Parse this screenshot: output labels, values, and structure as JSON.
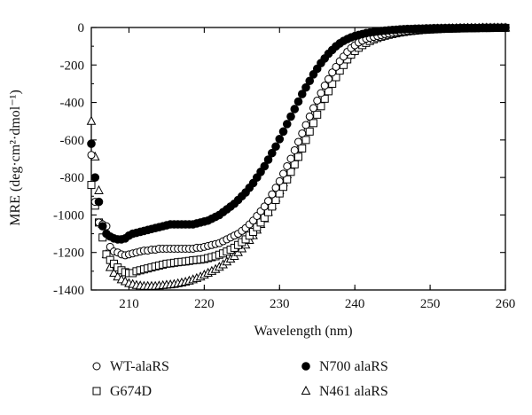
{
  "chart_data": {
    "type": "scatter",
    "title": "",
    "xlabel": "Wavelength (nm)",
    "ylabel": "MRE (deg·cm²·dmol⁻¹)",
    "xlim": [
      205,
      260
    ],
    "ylim": [
      -1400,
      0
    ],
    "xticks": [
      210,
      220,
      230,
      240,
      250,
      260
    ],
    "yticks": [
      0,
      -200,
      -400,
      -600,
      -800,
      -1000,
      -1200,
      -1400
    ],
    "grid": false,
    "legend_position": "bottom",
    "series": [
      {
        "name": "WT-alaRS",
        "marker": "open-circle",
        "x": [
          205,
          205.5,
          206,
          206.5,
          207,
          207.5,
          208,
          208.5,
          209,
          209.5,
          210,
          210.5,
          211,
          211.5,
          212,
          212.5,
          213,
          213.5,
          214,
          214.5,
          215,
          215.5,
          216,
          216.5,
          217,
          217.5,
          218,
          218.5,
          219,
          219.5,
          220,
          220.5,
          221,
          221.5,
          222,
          222.5,
          223,
          223.5,
          224,
          224.5,
          225,
          225.5,
          226,
          226.5,
          227,
          227.5,
          228,
          228.5,
          229,
          229.5,
          230,
          230.5,
          231,
          231.5,
          232,
          232.5,
          233,
          233.5,
          234,
          234.5,
          235,
          235.5,
          236,
          236.5,
          237,
          237.5,
          238,
          238.5,
          239,
          239.5,
          240,
          240.5,
          241,
          241.5,
          242,
          242.5,
          243,
          243.5,
          244,
          244.5,
          245,
          245.5,
          246,
          246.5,
          247,
          247.5,
          248,
          248.5,
          249,
          249.5,
          250,
          250.5,
          251,
          251.5,
          252,
          252.5,
          253,
          253.5,
          254,
          254.5,
          255,
          255.5,
          256,
          256.5,
          257,
          257.5,
          258,
          258.5,
          259,
          259.5,
          260
        ],
        "values": [
          -680,
          -930,
          -1040,
          -1050,
          -1060,
          -1170,
          -1195,
          -1200,
          -1210,
          -1215,
          -1210,
          -1205,
          -1200,
          -1195,
          -1190,
          -1190,
          -1185,
          -1185,
          -1180,
          -1180,
          -1180,
          -1180,
          -1180,
          -1180,
          -1180,
          -1180,
          -1180,
          -1180,
          -1175,
          -1175,
          -1170,
          -1165,
          -1160,
          -1155,
          -1150,
          -1140,
          -1130,
          -1120,
          -1110,
          -1100,
          -1085,
          -1070,
          -1050,
          -1030,
          -1005,
          -980,
          -955,
          -925,
          -890,
          -855,
          -820,
          -780,
          -740,
          -700,
          -655,
          -610,
          -565,
          -520,
          -475,
          -430,
          -390,
          -350,
          -310,
          -275,
          -240,
          -210,
          -180,
          -155,
          -130,
          -110,
          -95,
          -80,
          -70,
          -60,
          -55,
          -50,
          -45,
          -40,
          -35,
          -32,
          -28,
          -25,
          -22,
          -20,
          -18,
          -16,
          -14,
          -12,
          -11,
          -10,
          -9,
          -8,
          -8,
          -7,
          -6,
          -6,
          -5,
          -5,
          -5,
          -4,
          -4,
          -4,
          -3,
          -3,
          -3,
          -3,
          -2,
          -2,
          -2,
          -2,
          -2
        ]
      },
      {
        "name": "N700 alaRS",
        "marker": "filled-circle",
        "x": [
          205,
          205.5,
          206,
          206.5,
          207,
          207.5,
          208,
          208.5,
          209,
          209.5,
          210,
          210.5,
          211,
          211.5,
          212,
          212.5,
          213,
          213.5,
          214,
          214.5,
          215,
          215.5,
          216,
          216.5,
          217,
          217.5,
          218,
          218.5,
          219,
          219.5,
          220,
          220.5,
          221,
          221.5,
          222,
          222.5,
          223,
          223.5,
          224,
          224.5,
          225,
          225.5,
          226,
          226.5,
          227,
          227.5,
          228,
          228.5,
          229,
          229.5,
          230,
          230.5,
          231,
          231.5,
          232,
          232.5,
          233,
          233.5,
          234,
          234.5,
          235,
          235.5,
          236,
          236.5,
          237,
          237.5,
          238,
          238.5,
          239,
          239.5,
          240,
          240.5,
          241,
          241.5,
          242,
          242.5,
          243,
          243.5,
          244,
          244.5,
          245,
          245.5,
          246,
          246.5,
          247,
          247.5,
          248,
          248.5,
          249,
          249.5,
          250,
          250.5,
          251,
          251.5,
          252,
          252.5,
          253,
          253.5,
          254,
          254.5,
          255,
          255.5,
          256,
          256.5,
          257,
          257.5,
          258,
          258.5,
          259,
          259.5,
          260
        ],
        "values": [
          -620,
          -800,
          -930,
          -1060,
          -1100,
          -1115,
          -1125,
          -1130,
          -1130,
          -1125,
          -1110,
          -1100,
          -1095,
          -1090,
          -1085,
          -1080,
          -1075,
          -1070,
          -1065,
          -1060,
          -1055,
          -1050,
          -1050,
          -1050,
          -1050,
          -1050,
          -1050,
          -1050,
          -1045,
          -1040,
          -1035,
          -1030,
          -1020,
          -1010,
          -1000,
          -985,
          -970,
          -955,
          -940,
          -920,
          -900,
          -880,
          -855,
          -830,
          -800,
          -770,
          -740,
          -705,
          -670,
          -635,
          -595,
          -555,
          -515,
          -475,
          -435,
          -395,
          -355,
          -320,
          -285,
          -250,
          -220,
          -190,
          -165,
          -140,
          -120,
          -100,
          -85,
          -72,
          -62,
          -53,
          -46,
          -40,
          -35,
          -30,
          -27,
          -24,
          -21,
          -19,
          -17,
          -15,
          -13,
          -12,
          -10,
          -9,
          -8,
          -8,
          -7,
          -6,
          -6,
          -5,
          -5,
          -4,
          -4,
          -4,
          -3,
          -3,
          -3,
          -3,
          -2,
          -2,
          -2,
          -2,
          -2,
          -2,
          -1,
          -1,
          -1,
          -1,
          -1,
          -1,
          -1
        ]
      },
      {
        "name": "G674D",
        "marker": "open-square",
        "x": [
          205,
          205.5,
          206,
          206.5,
          207,
          207.5,
          208,
          208.5,
          209,
          209.5,
          210,
          210.5,
          211,
          211.5,
          212,
          212.5,
          213,
          213.5,
          214,
          214.5,
          215,
          215.5,
          216,
          216.5,
          217,
          217.5,
          218,
          218.5,
          219,
          219.5,
          220,
          220.5,
          221,
          221.5,
          222,
          222.5,
          223,
          223.5,
          224,
          224.5,
          225,
          225.5,
          226,
          226.5,
          227,
          227.5,
          228,
          228.5,
          229,
          229.5,
          230,
          230.5,
          231,
          231.5,
          232,
          232.5,
          233,
          233.5,
          234,
          234.5,
          235,
          235.5,
          236,
          236.5,
          237,
          237.5,
          238,
          238.5,
          239,
          239.5,
          240,
          240.5,
          241,
          241.5,
          242,
          242.5,
          243,
          243.5,
          244,
          244.5,
          245,
          245.5,
          246,
          246.5,
          247,
          247.5,
          248,
          248.5,
          249,
          249.5,
          250,
          250.5,
          251,
          251.5,
          252,
          252.5,
          253,
          253.5,
          254,
          254.5,
          255,
          255.5,
          256,
          256.5,
          257,
          257.5,
          258,
          258.5,
          259,
          259.5,
          260
        ],
        "values": [
          -840,
          -950,
          -1040,
          -1120,
          -1210,
          -1240,
          -1260,
          -1280,
          -1295,
          -1305,
          -1310,
          -1310,
          -1300,
          -1295,
          -1290,
          -1285,
          -1280,
          -1275,
          -1270,
          -1265,
          -1260,
          -1258,
          -1255,
          -1252,
          -1250,
          -1248,
          -1245,
          -1242,
          -1240,
          -1238,
          -1235,
          -1230,
          -1225,
          -1220,
          -1212,
          -1205,
          -1195,
          -1185,
          -1175,
          -1160,
          -1145,
          -1130,
          -1110,
          -1090,
          -1065,
          -1040,
          -1015,
          -985,
          -955,
          -920,
          -885,
          -850,
          -810,
          -770,
          -730,
          -690,
          -645,
          -600,
          -555,
          -510,
          -465,
          -420,
          -380,
          -340,
          -300,
          -265,
          -230,
          -200,
          -170,
          -145,
          -125,
          -108,
          -94,
          -82,
          -72,
          -63,
          -56,
          -50,
          -44,
          -39,
          -35,
          -31,
          -27,
          -24,
          -21,
          -19,
          -17,
          -15,
          -13,
          -12,
          -11,
          -10,
          -9,
          -8,
          -7,
          -7,
          -6,
          -6,
          -5,
          -5,
          -4,
          -4,
          -4,
          -3,
          -3,
          -3,
          -3,
          -2,
          -2,
          -2,
          -2
        ]
      },
      {
        "name": "N461 alaRS",
        "marker": "open-triangle",
        "x": [
          205,
          205.5,
          206,
          206.5,
          207,
          207.5,
          208,
          208.5,
          209,
          209.5,
          210,
          210.5,
          211,
          211.5,
          212,
          212.5,
          213,
          213.5,
          214,
          214.5,
          215,
          215.5,
          216,
          216.5,
          217,
          217.5,
          218,
          218.5,
          219,
          219.5,
          220,
          220.5,
          221,
          221.5,
          222,
          222.5,
          223,
          223.5,
          224,
          224.5,
          225,
          225.5,
          226,
          226.5,
          227,
          227.5,
          228,
          228.5,
          229,
          229.5,
          230,
          230.5,
          231,
          231.5,
          232,
          232.5,
          233,
          233.5,
          234,
          234.5,
          235,
          235.5,
          236,
          236.5,
          237,
          237.5,
          238,
          238.5,
          239,
          239.5,
          240,
          240.5,
          241,
          241.5,
          242,
          242.5,
          243,
          243.5,
          244,
          244.5,
          245,
          245.5,
          246,
          246.5,
          247,
          247.5,
          248,
          248.5,
          249,
          249.5,
          250,
          250.5,
          251,
          251.5,
          252,
          252.5,
          253,
          253.5,
          254,
          254.5,
          255,
          255.5,
          256,
          256.5,
          257,
          257.5,
          258,
          258.5,
          259,
          259.5,
          260
        ],
        "values": [
          -500,
          -690,
          -870,
          -1050,
          -1210,
          -1280,
          -1310,
          -1330,
          -1345,
          -1355,
          -1365,
          -1370,
          -1375,
          -1378,
          -1380,
          -1380,
          -1380,
          -1380,
          -1378,
          -1376,
          -1374,
          -1372,
          -1370,
          -1366,
          -1362,
          -1358,
          -1352,
          -1345,
          -1338,
          -1330,
          -1320,
          -1310,
          -1300,
          -1290,
          -1278,
          -1265,
          -1250,
          -1235,
          -1220,
          -1200,
          -1180,
          -1160,
          -1135,
          -1110,
          -1080,
          -1050,
          -1020,
          -985,
          -950,
          -910,
          -870,
          -828,
          -785,
          -740,
          -695,
          -648,
          -600,
          -552,
          -505,
          -460,
          -415,
          -372,
          -332,
          -295,
          -260,
          -228,
          -200,
          -174,
          -150,
          -130,
          -112,
          -97,
          -84,
          -73,
          -63,
          -55,
          -48,
          -42,
          -37,
          -32,
          -28,
          -25,
          -22,
          -19,
          -17,
          -15,
          -13,
          -12,
          -11,
          -10,
          -9,
          -8,
          -7,
          -6,
          -6,
          -5,
          -5,
          -4,
          -4,
          -4,
          -3,
          -3,
          -3,
          -3,
          -2,
          -2,
          -2,
          -2,
          -2,
          -2,
          -2
        ]
      }
    ]
  }
}
